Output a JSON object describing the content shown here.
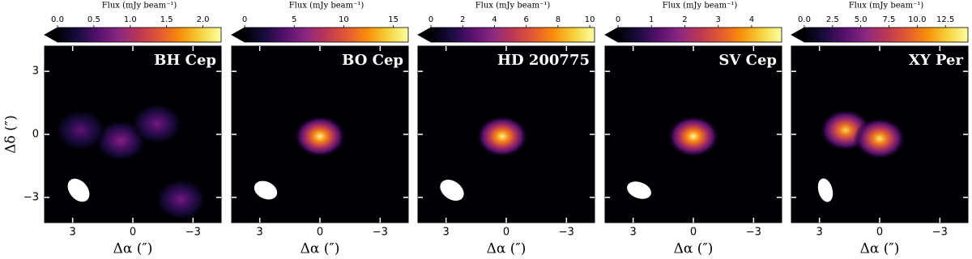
{
  "chart_data": [
    {
      "type": "heatmap",
      "title": "BH Cep",
      "colormap": "inferno",
      "colorbar_label": "Flux (mJy beam⁻¹)",
      "clim": [
        0,
        2.25
      ],
      "cticks": [
        {
          "value": 0,
          "label": "0.0"
        },
        0.5,
        {
          "value": 1,
          "label": "1.0"
        },
        1.5,
        {
          "value": 2,
          "label": "2.0"
        }
      ],
      "xlim": [
        4.4,
        -4.4
      ],
      "ylim": [
        -4.2,
        4.2
      ],
      "xticks": [
        3,
        0,
        {
          "value": -3,
          "label": "−3"
        }
      ],
      "yticks": [
        {
          "value": -3,
          "label": "−3"
        },
        0,
        3
      ],
      "x_label": "Δα (″)",
      "y_label": "Δδ (″)",
      "sources": [
        {
          "x": 0.6,
          "y": -0.3,
          "peak": 0.8
        },
        {
          "x": -1.2,
          "y": 0.5,
          "peak": 0.7
        },
        {
          "x": 2.6,
          "y": 0.2,
          "peak": 0.6
        },
        {
          "x": -2.4,
          "y": -3.1,
          "peak": 0.7
        }
      ],
      "beam": {
        "major": 1.3,
        "minor": 0.9,
        "pa": 40
      }
    },
    {
      "type": "heatmap",
      "title": "BO Cep",
      "colormap": "inferno",
      "colorbar_label": "Flux (mJy beam⁻¹)",
      "clim": [
        0,
        16.5
      ],
      "cticks": [
        0,
        5,
        10,
        15
      ],
      "xlim": [
        4.4,
        -4.4
      ],
      "ylim": [
        -4.2,
        4.2
      ],
      "xticks": [
        3,
        0,
        {
          "value": -3,
          "label": "−3"
        }
      ],
      "yticks": [
        -3,
        0,
        3
      ],
      "x_label": "Δα (″)",
      "sources": [
        {
          "x": 0,
          "y": -0.1,
          "peak": 16
        }
      ],
      "beam": {
        "major": 1.2,
        "minor": 0.85,
        "pa": 65
      }
    },
    {
      "type": "heatmap",
      "title": "HD 200775",
      "colormap": "inferno",
      "colorbar_label": "Flux (mJy beam⁻¹)",
      "clim": [
        0,
        10.3
      ],
      "cticks": [
        0,
        2,
        4,
        6,
        8,
        10
      ],
      "xlim": [
        4.4,
        -4.4
      ],
      "ylim": [
        -4.2,
        4.2
      ],
      "xticks": [
        3,
        0,
        {
          "value": -3,
          "label": "−3"
        }
      ],
      "yticks": [
        -3,
        0,
        3
      ],
      "x_label": "Δα (″)",
      "sources": [
        {
          "x": 0.2,
          "y": -0.1,
          "peak": 10
        }
      ],
      "beam": {
        "major": 1.3,
        "minor": 0.9,
        "pa": 55
      }
    },
    {
      "type": "heatmap",
      "title": "SV Cep",
      "colormap": "inferno",
      "colorbar_label": "Flux (mJy beam⁻¹)",
      "clim": [
        0,
        4.9
      ],
      "cticks": [
        0,
        1,
        2,
        3,
        4
      ],
      "xlim": [
        4.4,
        -4.4
      ],
      "ylim": [
        -4.2,
        4.2
      ],
      "xticks": [
        3,
        0,
        {
          "value": -3,
          "label": "−3"
        }
      ],
      "yticks": [
        -3,
        0,
        3
      ],
      "x_label": "Δα (″)",
      "sources": [
        {
          "x": 0,
          "y": -0.1,
          "peak": 4.8
        }
      ],
      "beam": {
        "major": 1.25,
        "minor": 0.8,
        "pa": 70
      }
    },
    {
      "type": "heatmap",
      "title": "XY Per",
      "colormap": "inferno",
      "colorbar_label": "Flux (mJy beam⁻¹)",
      "clim": [
        0,
        14.5
      ],
      "cticks": [
        {
          "value": 0,
          "label": "0.0"
        },
        2.5,
        {
          "value": 5,
          "label": "5.0"
        },
        7.5,
        {
          "value": 10,
          "label": "10.0"
        },
        12.5
      ],
      "xlim": [
        4.4,
        -4.4
      ],
      "ylim": [
        -4.2,
        4.2
      ],
      "xticks": [
        3,
        0,
        {
          "value": -3,
          "label": "−3"
        }
      ],
      "yticks": [
        -3,
        0,
        3
      ],
      "x_label": "Δα (″)",
      "sources": [
        {
          "x": 1.7,
          "y": 0.2,
          "peak": 13
        },
        {
          "x": 0,
          "y": -0.2,
          "peak": 13.5
        }
      ],
      "beam": {
        "major": 1.2,
        "minor": 0.7,
        "pa": 15
      }
    }
  ]
}
